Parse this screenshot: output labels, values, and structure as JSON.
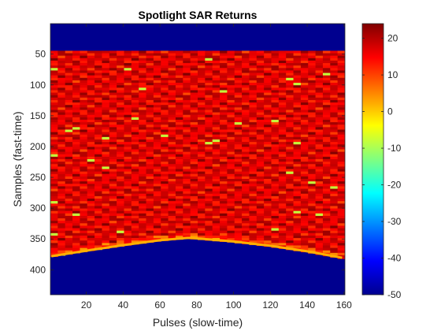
{
  "chart_data": {
    "type": "heatmap",
    "title": "Spotlight SAR Returns",
    "xlabel": "Pulses (slow-time)",
    "ylabel": "Samples (fast-time)",
    "xlim": [
      0.5,
      160.5
    ],
    "ylim": [
      0.5,
      440.5
    ],
    "y_reversed": true,
    "x_ticks": [
      20,
      40,
      60,
      80,
      100,
      120,
      140,
      160
    ],
    "y_ticks": [
      50,
      100,
      150,
      200,
      250,
      300,
      350,
      400
    ],
    "colorbar": {
      "colormap": "jet",
      "clim": [
        -50,
        24
      ],
      "ticks": [
        20,
        10,
        0,
        -10,
        -20,
        -30,
        -40,
        -50
      ]
    },
    "regions": {
      "signal_start_sample": 45,
      "noise_floor_value": -50,
      "signal_range": [
        10,
        24
      ],
      "lower_boundary": {
        "pulse": [
          1,
          20,
          40,
          60,
          76,
          80,
          100,
          120,
          140,
          160
        ],
        "sample": [
          380,
          371,
          362,
          354,
          350,
          351,
          356,
          363,
          372,
          383
        ]
      }
    },
    "grid": false
  }
}
